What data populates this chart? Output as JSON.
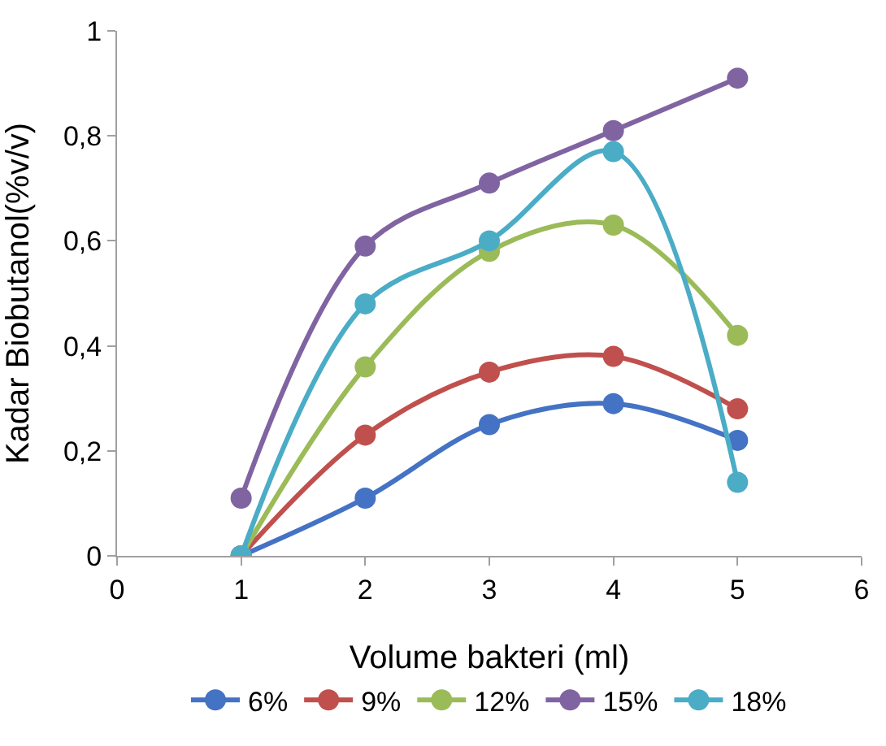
{
  "chart_data": {
    "type": "line",
    "xlabel": "Volume bakteri (ml)",
    "ylabel": "Kadar Biobutanol(%v/v)",
    "x": [
      1,
      2,
      3,
      4,
      5
    ],
    "series": [
      {
        "name": "6%",
        "color": "#4472c4",
        "values": [
          0,
          0.11,
          0.25,
          0.29,
          0.22
        ]
      },
      {
        "name": "9%",
        "color": "#c0504d",
        "values": [
          0,
          0.23,
          0.35,
          0.38,
          0.28
        ]
      },
      {
        "name": "12%",
        "color": "#9bbb59",
        "values": [
          0,
          0.36,
          0.58,
          0.63,
          0.42
        ]
      },
      {
        "name": "15%",
        "color": "#8064a2",
        "values": [
          0.11,
          0.59,
          0.71,
          0.81,
          0.91
        ]
      },
      {
        "name": "18%",
        "color": "#4bacc6",
        "values": [
          0,
          0.48,
          0.6,
          0.77,
          0.14
        ]
      }
    ],
    "xlim": [
      0,
      6
    ],
    "xticks": [
      0,
      1,
      2,
      3,
      4,
      5,
      6
    ],
    "ylim": [
      0,
      1
    ],
    "yticks": [
      0,
      {
        "value": 0.2,
        "label": "0,2"
      },
      {
        "value": 0.4,
        "label": "0,4"
      },
      {
        "value": 0.6,
        "label": "0,6"
      },
      {
        "value": 0.8,
        "label": "0,8"
      },
      1
    ],
    "legend": "bottom",
    "marker": "circle",
    "line_style": "solid"
  }
}
